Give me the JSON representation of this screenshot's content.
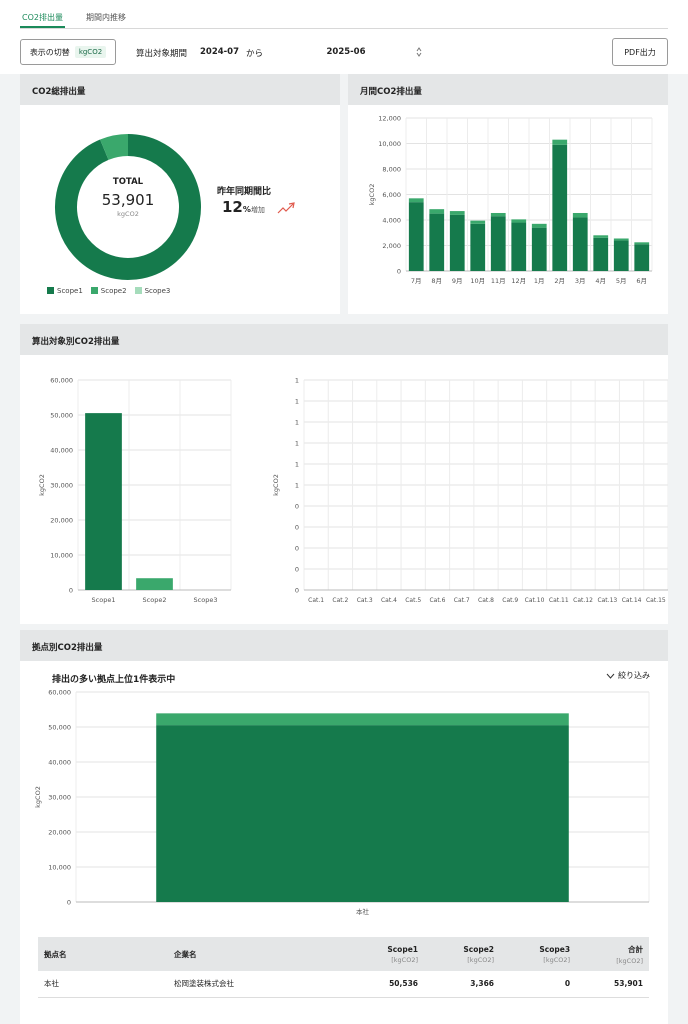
{
  "tabs": [
    {
      "label": "CO2排出量"
    },
    {
      "label": "期間内推移"
    }
  ],
  "toolbar": {
    "display_toggle_label": "表示の切替",
    "unit": "kgCO2",
    "period_label": "算出対象期間",
    "period_start": "2024-07",
    "from_label": "から",
    "period_end": "2025-06",
    "pdf_label": "PDF出力"
  },
  "total_card": {
    "title": "CO2総排出量",
    "total_label": "TOTAL",
    "total_value": "53,901",
    "total_unit": "kgCO2",
    "yoy_label": "昨年同期間比",
    "yoy_value": "12",
    "yoy_suffix": "%",
    "yoy_text": "増加",
    "legend": [
      {
        "name": "Scope1",
        "color": "#157a4c"
      },
      {
        "name": "Scope2",
        "color": "#3aa86c"
      },
      {
        "name": "Scope3",
        "color": "#a5dcbb"
      }
    ]
  },
  "monthly_card": {
    "title": "月間CO2排出量"
  },
  "scope_card": {
    "title": "算出対象別CO2排出量"
  },
  "site_card": {
    "title": "拠点別CO2排出量",
    "subtitle": "排出の多い拠点上位1件表示中",
    "filter_label": "絞り込み"
  },
  "chart_data": [
    {
      "type": "pie",
      "categories": [
        "Scope1",
        "Scope2",
        "Scope3"
      ],
      "values": [
        50536,
        3366,
        0
      ],
      "colors": [
        "#157a4c",
        "#3aa86c",
        "#a5dcbb"
      ]
    },
    {
      "type": "bar",
      "stacked": true,
      "categories": [
        "7月",
        "8月",
        "9月",
        "10月",
        "11月",
        "12月",
        "1月",
        "2月",
        "3月",
        "4月",
        "5月",
        "6月"
      ],
      "series": [
        {
          "values": [
            5400,
            4500,
            4400,
            3700,
            4300,
            3800,
            3400,
            9900,
            4200,
            2600,
            2400,
            2100
          ]
        },
        {
          "values": [
            300,
            350,
            300,
            250,
            250,
            250,
            300,
            400,
            350,
            200,
            150,
            150
          ]
        },
        {
          "values": [
            0,
            0,
            0,
            0,
            0,
            0,
            0,
            0,
            0,
            0,
            0,
            0
          ]
        }
      ],
      "ylabel": "kgCO2",
      "ylim": [
        0,
        12000
      ],
      "yticks": [
        "0",
        "2,000",
        "4,000",
        "6,000",
        "8,000",
        "10,000",
        "12,000"
      ],
      "grid": true
    },
    {
      "type": "bar",
      "categories": [
        "Scope1",
        "Scope2",
        "Scope3"
      ],
      "values": [
        50536,
        3366,
        0
      ],
      "colors": [
        "#157a4c",
        "#3aa86c",
        "#a5dcbb"
      ],
      "ylabel": "kgCO2",
      "ylim": [
        0,
        60000
      ],
      "yticks": [
        "0",
        "10,000",
        "20,000",
        "30,000",
        "40,000",
        "50,000",
        "60,000"
      ],
      "grid": true
    },
    {
      "type": "bar",
      "categories": [
        "Cat.1",
        "Cat.2",
        "Cat.3",
        "Cat.4",
        "Cat.5",
        "Cat.6",
        "Cat.7",
        "Cat.8",
        "Cat.9",
        "Cat.10",
        "Cat.11",
        "Cat.12",
        "Cat.13",
        "Cat.14",
        "Cat.15"
      ],
      "values": [
        0,
        0,
        0,
        0,
        0,
        0,
        0,
        0,
        0,
        0,
        0,
        0,
        0,
        0,
        0
      ],
      "ylabel": "kgCO2",
      "yticks": [
        "0",
        "0",
        "0",
        "0",
        "0",
        "1",
        "1",
        "1",
        "1",
        "1",
        "1"
      ],
      "grid": true
    },
    {
      "type": "bar",
      "stacked": true,
      "categories": [
        "本社"
      ],
      "series": [
        {
          "values": [
            50536
          ]
        },
        {
          "values": [
            3366
          ]
        },
        {
          "values": [
            0
          ]
        }
      ],
      "ylabel": "kgCO2",
      "ylim": [
        0,
        60000
      ],
      "yticks": [
        "0",
        "10,000",
        "20,000",
        "30,000",
        "40,000",
        "50,000",
        "60,000"
      ],
      "grid": true
    }
  ],
  "table": {
    "headers": [
      {
        "label": "拠点名",
        "unit": ""
      },
      {
        "label": "企業名",
        "unit": ""
      },
      {
        "label": "Scope1",
        "unit": "[kgCO2]"
      },
      {
        "label": "Scope2",
        "unit": "[kgCO2]"
      },
      {
        "label": "Scope3",
        "unit": "[kgCO2]"
      },
      {
        "label": "合計",
        "unit": "[kgCO2]"
      }
    ],
    "rows": [
      [
        "本社",
        "松岡塗装株式会社",
        "50,536",
        "3,366",
        "0",
        "53,901"
      ]
    ]
  }
}
